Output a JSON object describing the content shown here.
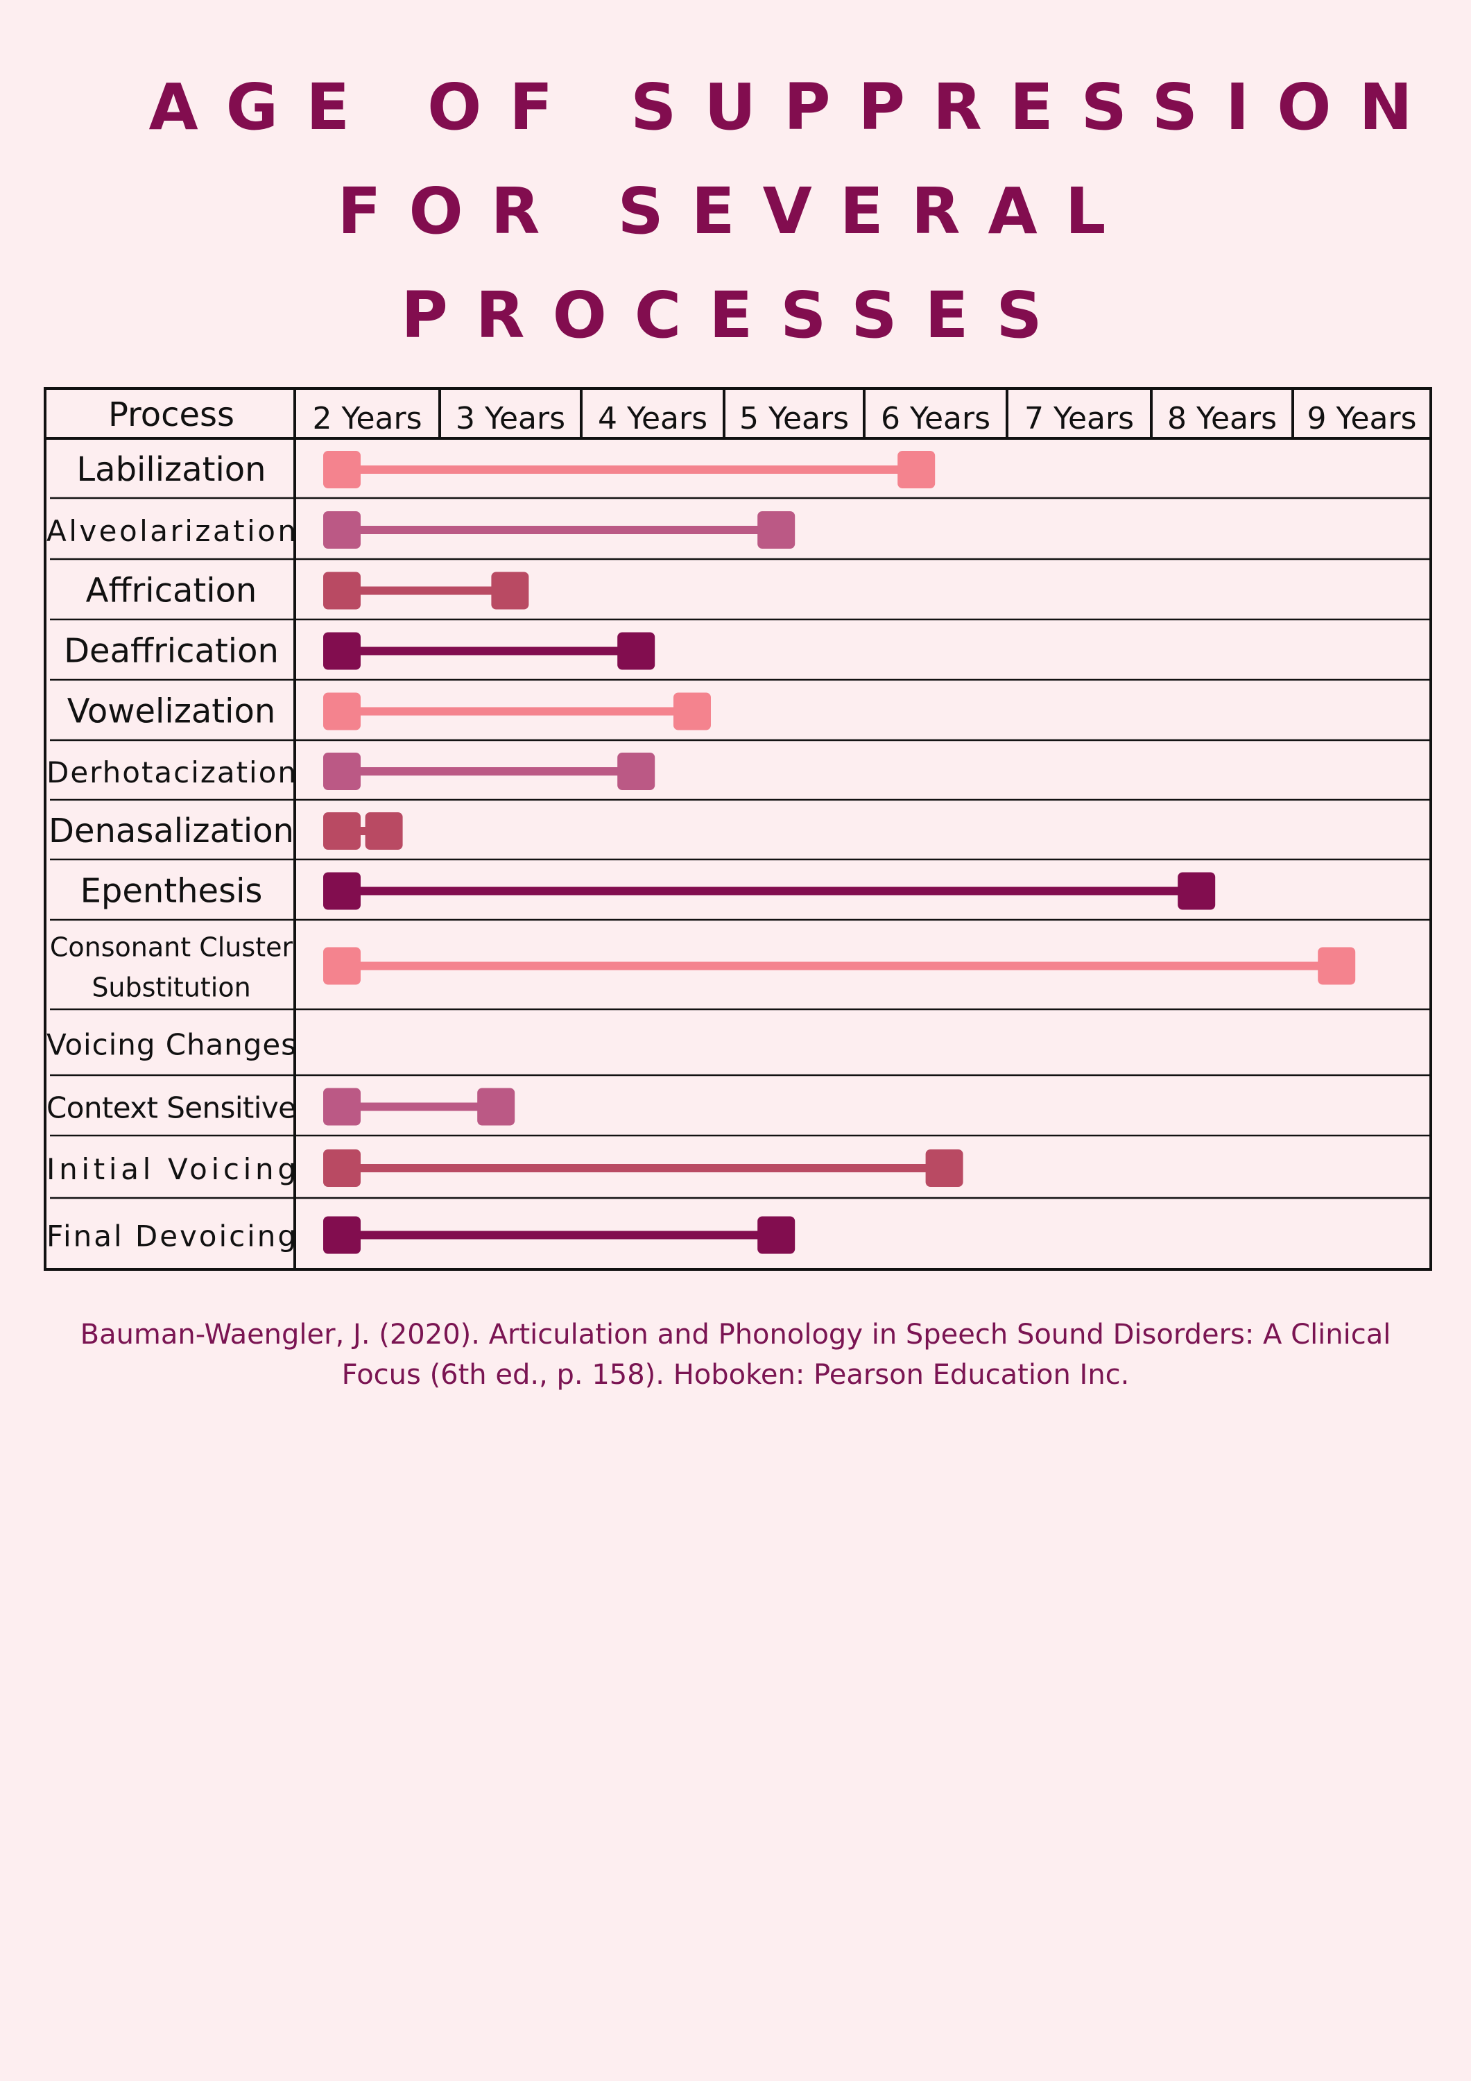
{
  "title_lines": [
    "AGE OF SUPPRESSION",
    "FOR SEVERAL",
    "PROCESSES"
  ],
  "chart_data": {
    "type": "range-bar",
    "title": "AGE OF SUPPRESSION FOR SEVERAL PROCESSES",
    "row_header": "Process",
    "x_ticks": [
      "2 Years",
      "3 Years",
      "4 Years",
      "5 Years",
      "6 Years",
      "7 Years",
      "8 Years",
      "9 Years"
    ],
    "xlim": [
      2,
      9.5
    ],
    "series": [
      {
        "name": "Labilization",
        "start": 2,
        "end": 6.1,
        "color": "#f4838e"
      },
      {
        "name": "Alveolarization",
        "start": 2,
        "end": 5.1,
        "color": "#bb5985"
      },
      {
        "name": "Affrication",
        "start": 2,
        "end": 3.2,
        "color": "#b94a63"
      },
      {
        "name": "Deaffrication",
        "start": 2,
        "end": 4.1,
        "color": "#820d4f"
      },
      {
        "name": "Vowelization",
        "start": 2,
        "end": 4.5,
        "color": "#f4838e"
      },
      {
        "name": "Derhotacization",
        "start": 2,
        "end": 4.1,
        "color": "#bb5985"
      },
      {
        "name": "Denasalization",
        "start": 2,
        "end": 2.3,
        "color": "#b94a63"
      },
      {
        "name": "Epenthesis",
        "start": 2,
        "end": 8.1,
        "color": "#820d4f"
      },
      {
        "name": "Consonant Cluster Substitution",
        "label_lines": [
          "Consonant Cluster",
          "Substitution"
        ],
        "start": 2,
        "end": 9.1,
        "color": "#f4838e"
      },
      {
        "name": "Voicing Changes",
        "start": null,
        "end": null,
        "color": ""
      },
      {
        "name": "Context Sensitive",
        "start": 2,
        "end": 3.1,
        "color": "#bb5985"
      },
      {
        "name": "Initial Voicing",
        "start": 2,
        "end": 6.3,
        "color": "#b94a63"
      },
      {
        "name": "Final Devoicing",
        "start": 2,
        "end": 5.1,
        "color": "#820d4f"
      }
    ],
    "grid": true,
    "legend": "none"
  },
  "citation": "Bauman-Waengler, J. (2020). Articulation and Phonology in Speech Sound Disorders: A Clinical Focus (6th ed., p. 158). Hoboken: Pearson Education Inc."
}
